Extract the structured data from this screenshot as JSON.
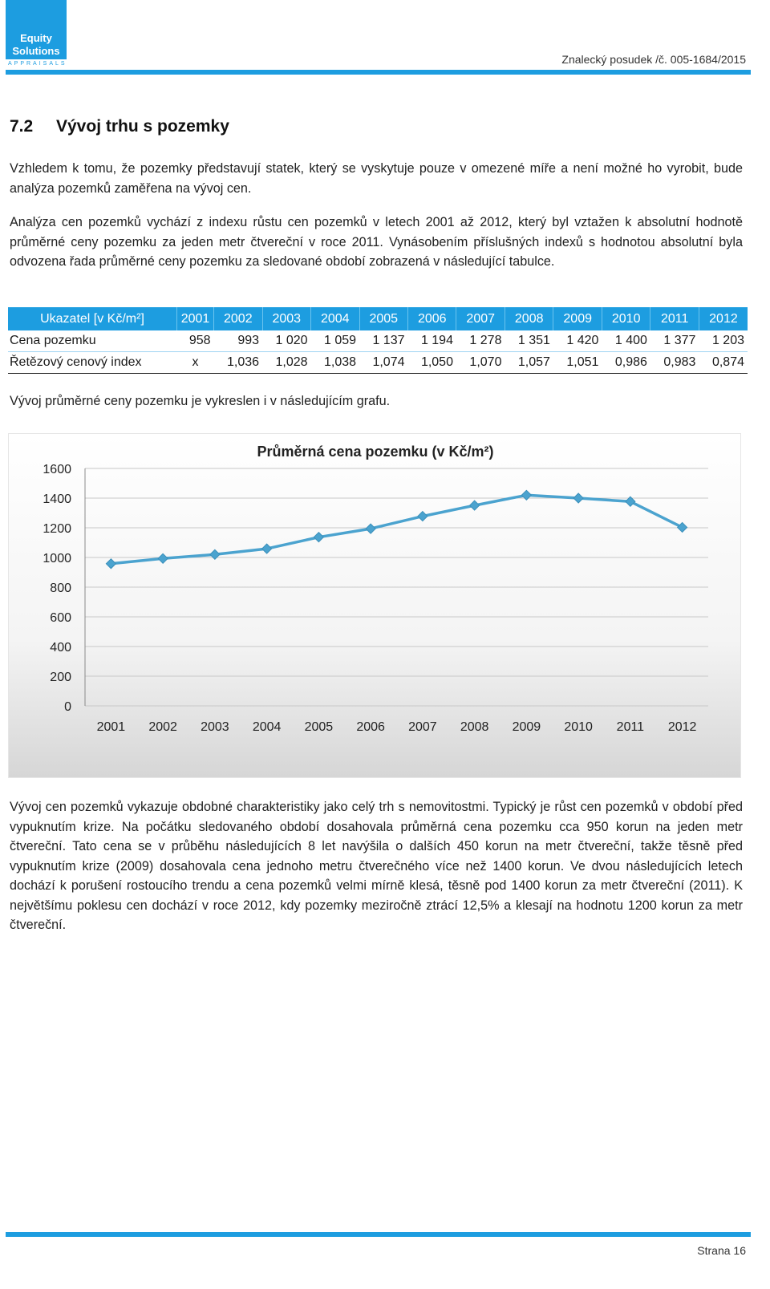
{
  "header": {
    "logo_line1": "Equity",
    "logo_line2": "Solutions",
    "logo_line3": "APPRAISALS",
    "reference": "Znalecký posudek /č. 005-1684/2015"
  },
  "section": {
    "number": "7.2",
    "title": "Vývoj trhu s pozemky"
  },
  "paragraphs": {
    "p1": "Vzhledem k tomu, že pozemky představují statek, který se vyskytuje pouze v omezené míře a není možné ho vyrobit, bude analýza pozemků zaměřena na vývoj cen.",
    "p2": "Analýza cen pozemků vychází z indexu růstu cen pozemků v letech 2001 až 2012, který byl vztažen k absolutní hodnotě průměrné ceny pozemku za jeden metr čtvereční v roce 2011. Vynásobením příslušných indexů s hodnotou absolutní byla odvozena řada průměrné ceny pozemku za sledované období zobrazená v následující tabulce.",
    "p3": "Vývoj průměrné ceny pozemku je vykreslen i v následujícím grafu.",
    "p4": "Vývoj cen pozemků vykazuje obdobné charakteristiky jako celý trh s nemovitostmi. Typický je růst cen pozemků v období před vypuknutím krize. Na počátku sledovaného období dosahovala průměrná cena pozemku cca 950 korun na jeden metr čtvereční. Tato cena se v průběhu následujících 8 let navýšila o dalších 450 korun na metr čtvereční, takže těsně před vypuknutím krize (2009) dosahovala cena jednoho metru čtverečného více než 1400 korun. Ve dvou následujících letech dochází k porušení rostoucího trendu a cena pozemků velmi mírně klesá, těsně pod 1400 korun za metr čtvereční (2011). K největšímu poklesu cen dochází v roce 2012, kdy pozemky meziročně ztrácí 12,5% a klesají na hodnotu 1200 korun za metr čtvereční."
  },
  "table": {
    "header_label": "Ukazatel [v Kč/m²]",
    "years": [
      "2001",
      "2002",
      "2003",
      "2004",
      "2005",
      "2006",
      "2007",
      "2008",
      "2009",
      "2010",
      "2011",
      "2012"
    ],
    "rows": [
      {
        "label": "Cena pozemku",
        "values": [
          "958",
          "993",
          "1 020",
          "1 059",
          "1 137",
          "1 194",
          "1 278",
          "1 351",
          "1 420",
          "1 400",
          "1 377",
          "1 203"
        ]
      },
      {
        "label": "Řetězový cenový index",
        "values": [
          "x",
          "1,036",
          "1,028",
          "1,038",
          "1,074",
          "1,050",
          "1,070",
          "1,057",
          "1,051",
          "0,986",
          "0,983",
          "0,874"
        ]
      }
    ]
  },
  "chart_data": {
    "type": "line",
    "title": "Průměrná cena pozemku  (v  Kč/m²)",
    "x": [
      "2001",
      "2002",
      "2003",
      "2004",
      "2005",
      "2006",
      "2007",
      "2008",
      "2009",
      "2010",
      "2011",
      "2012"
    ],
    "series": [
      {
        "values": [
          958,
          993,
          1020,
          1059,
          1137,
          1194,
          1278,
          1351,
          1420,
          1400,
          1377,
          1203
        ]
      }
    ],
    "ylim": [
      0,
      1600
    ],
    "yticks": [
      0,
      200,
      400,
      600,
      800,
      1000,
      1200,
      1400,
      1600
    ],
    "grid": true,
    "legend": "none",
    "line_color": "#4ba3cf",
    "marker": "diamond"
  },
  "footer": {
    "page_label": "Strana 16"
  }
}
